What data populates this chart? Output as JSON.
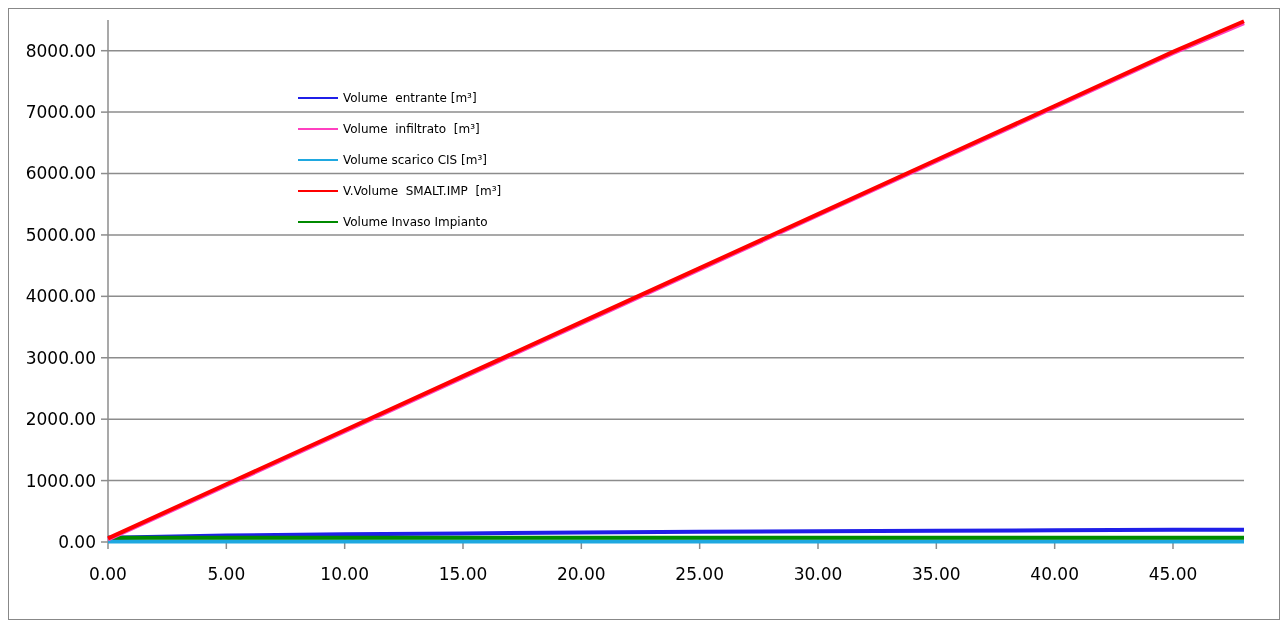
{
  "chart_data": {
    "type": "line",
    "x": [
      0,
      5,
      10,
      15,
      20,
      25,
      30,
      35,
      40,
      45,
      48
    ],
    "series": [
      {
        "name": "Volume  entrante [m³]",
        "color": "#1f1fe8",
        "values": [
          70,
          105,
          125,
          140,
          155,
          165,
          175,
          185,
          190,
          198,
          200
        ]
      },
      {
        "name": "Volume  infiltrato  [m³]",
        "color": "#ff40c0",
        "values": [
          40,
          920,
          1800,
          2680,
          3560,
          4440,
          5320,
          6200,
          7080,
          7960,
          8450
        ]
      },
      {
        "name": "Volume scarico CIS [m³]",
        "color": "#1fa8e0",
        "values": [
          10,
          10,
          10,
          10,
          10,
          10,
          10,
          10,
          10,
          10,
          10
        ]
      },
      {
        "name": "V.Volume  SMALT.IMP  [m³]",
        "color": "#ff0000",
        "values": [
          60,
          940,
          1820,
          2700,
          3580,
          4460,
          5340,
          6220,
          7100,
          7980,
          8480
        ]
      },
      {
        "name": "Volume Invaso Impianto",
        "color": "#008a00",
        "values": [
          70,
          70,
          70,
          70,
          70,
          70,
          70,
          70,
          70,
          70,
          70
        ]
      }
    ],
    "xlim": [
      0,
      48
    ],
    "xticks": [
      {
        "value": 0,
        "label": "0.00"
      },
      {
        "value": 5,
        "label": "5.00"
      },
      {
        "value": 10,
        "label": "10.00"
      },
      {
        "value": 15,
        "label": "15.00"
      },
      {
        "value": 20,
        "label": "20.00"
      },
      {
        "value": 25,
        "label": "25.00"
      },
      {
        "value": 30,
        "label": "30.00"
      },
      {
        "value": 35,
        "label": "35.00"
      },
      {
        "value": 40,
        "label": "40.00"
      },
      {
        "value": 45,
        "label": "45.00"
      }
    ],
    "ylim": [
      0,
      8500
    ],
    "yticks": [
      {
        "value": 0,
        "label": "0.00"
      },
      {
        "value": 1000,
        "label": "1000.00"
      },
      {
        "value": 2000,
        "label": "2000.00"
      },
      {
        "value": 3000,
        "label": "3000.00"
      },
      {
        "value": 4000,
        "label": "4000.00"
      },
      {
        "value": 5000,
        "label": "5000.00"
      },
      {
        "value": 6000,
        "label": "6000.00"
      },
      {
        "value": 7000,
        "label": "7000.00"
      },
      {
        "value": 8000,
        "label": "8000.00"
      }
    ],
    "grid": "y",
    "legend": "top left",
    "marker": "none",
    "line_style": "solid"
  }
}
